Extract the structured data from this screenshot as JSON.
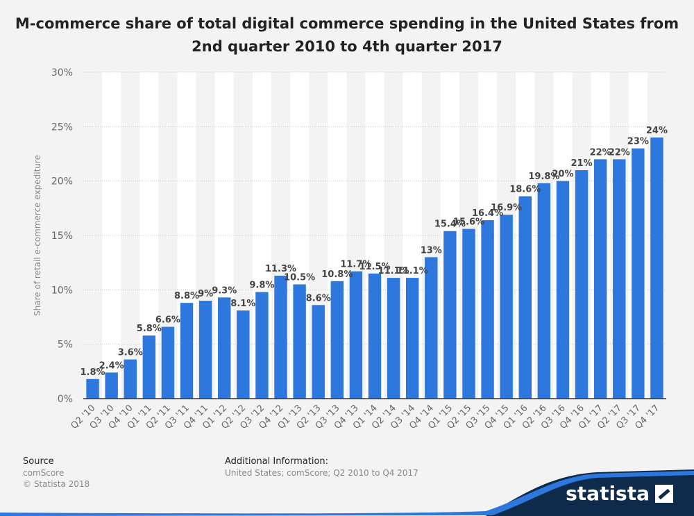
{
  "title": "M-commerce share of total digital commerce spending in the United States from 2nd quarter 2010 to 4th quarter 2017",
  "footer": {
    "source_heading": "Source",
    "source_name": "comScore",
    "copyright": "© Statista 2018",
    "additional_heading": "Additional Information:",
    "additional_text": "United States; comScore; Q2 2010 to Q4 2017"
  },
  "brand": {
    "name": "statista"
  },
  "colors": {
    "bar": "#2e78dd",
    "label": "#444444",
    "background": "#f3f3f3",
    "stripe": "#ffffff",
    "brand_dark": "#0f2b4b",
    "brand_accent": "#2e78dd"
  },
  "chart_data": {
    "type": "bar",
    "title": "M-commerce share of total digital commerce spending in the United States from 2nd quarter 2010 to 4th quarter 2017",
    "xlabel": "",
    "ylabel": "Share of retail e-commerce expediture",
    "ylim": [
      0,
      30
    ],
    "yticks": [
      0,
      5,
      10,
      15,
      20,
      25,
      30
    ],
    "ytick_labels": [
      "0%",
      "5%",
      "10%",
      "15%",
      "20%",
      "25%",
      "30%"
    ],
    "grid": true,
    "categories": [
      "Q2 '10",
      "Q3 '10",
      "Q4 '10",
      "Q1 '11",
      "Q2 '11",
      "Q3 '11",
      "Q4 '11",
      "Q1 '12",
      "Q2 '12",
      "Q3 '12",
      "Q4 '12",
      "Q1 '13",
      "Q2 '13",
      "Q3 '13",
      "Q4 '13",
      "Q1 '14",
      "Q2 '14",
      "Q3 '14",
      "Q4 '14",
      "Q1 '15",
      "Q2 '15",
      "Q3 '15",
      "Q4 '15",
      "Q1 '16",
      "Q2 '16",
      "Q3 '16",
      "Q4 '16",
      "Q1 '17",
      "Q2 '17",
      "Q3 '17",
      "Q4 '17"
    ],
    "values": [
      1.8,
      2.4,
      3.6,
      5.8,
      6.6,
      8.8,
      9,
      9.3,
      8.1,
      9.8,
      11.3,
      10.5,
      8.6,
      10.8,
      11.7,
      11.5,
      11.1,
      11.1,
      13,
      15.4,
      15.6,
      16.4,
      16.9,
      18.6,
      19.8,
      20,
      21,
      22,
      22,
      23,
      24
    ],
    "data_labels": [
      "1.8%",
      "2.4%",
      "3.6%",
      "5.8%",
      "6.6%",
      "8.8%",
      "9%",
      "9.3%",
      "8.1%",
      "9.8%",
      "11.3%",
      "10.5%",
      "8.6%",
      "10.8%",
      "11.7%",
      "11.5%",
      "11.1%",
      "11.1%",
      "13%",
      "15.4%",
      "15.6%",
      "16.4%",
      "16.9%",
      "18.6%",
      "19.8%",
      "20%",
      "21%",
      "22%",
      "22%",
      "23%",
      "24%"
    ]
  }
}
